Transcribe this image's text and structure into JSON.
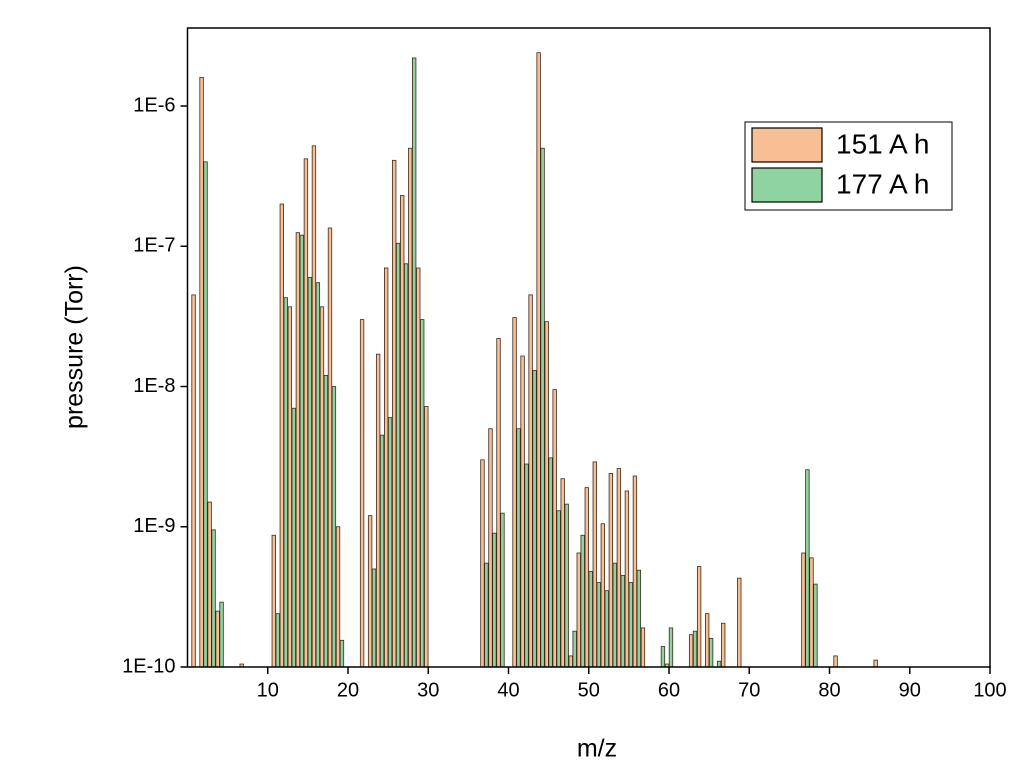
{
  "chart_data": {
    "type": "bar",
    "x_label": "m/z",
    "y_label": "pressure (Torr)",
    "x": [
      1,
      2,
      3,
      4,
      7,
      11,
      12,
      13,
      14,
      15,
      16,
      17,
      18,
      19,
      22,
      23,
      24,
      25,
      26,
      27,
      28,
      29,
      30,
      37,
      38,
      39,
      41,
      42,
      43,
      44,
      45,
      46,
      47,
      48,
      49,
      50,
      51,
      52,
      53,
      54,
      55,
      56,
      57,
      59,
      60,
      63,
      64,
      65,
      66,
      67,
      69,
      77,
      78,
      81,
      86
    ],
    "series": [
      {
        "name": "151 A h",
        "color": "#f9bf94",
        "values": [
          4.5e-08,
          1.6e-06,
          1.5e-09,
          2.5e-10,
          1.05e-10,
          8.7e-10,
          2e-07,
          3.7e-08,
          1.25e-07,
          4.2e-07,
          5.2e-07,
          3.7e-08,
          1.35e-07,
          1e-09,
          3e-08,
          1.2e-09,
          1.7e-08,
          7e-08,
          4.1e-07,
          2.3e-07,
          5e-07,
          7e-08,
          7.2e-09,
          3e-09,
          5e-09,
          2.2e-08,
          3.1e-08,
          1.65e-08,
          4.5e-08,
          2.4e-06,
          2.9e-08,
          9.5e-09,
          2.2e-09,
          1.2e-10,
          6.5e-10,
          1.9e-09,
          2.9e-09,
          1.05e-09,
          2.4e-09,
          2.6e-09,
          1.8e-09,
          2.3e-09,
          1.9e-10,
          null,
          1.05e-10,
          1.7e-10,
          5.2e-10,
          2.4e-10,
          null,
          2.05e-10,
          4.3e-10,
          6.5e-10,
          6e-10,
          1.2e-10,
          1.12e-10
        ]
      },
      {
        "name": "177 A h",
        "color": "#8fd3a0",
        "values": [
          null,
          4e-07,
          9.5e-10,
          2.9e-10,
          null,
          2.4e-10,
          4.3e-08,
          7e-09,
          1.2e-07,
          6e-08,
          5.5e-08,
          1.2e-08,
          1e-08,
          1.55e-10,
          null,
          5e-10,
          4.5e-09,
          6e-09,
          1.05e-07,
          7.5e-08,
          2.2e-06,
          3e-08,
          null,
          5.5e-10,
          9e-10,
          1.25e-09,
          5e-09,
          2.8e-09,
          1.3e-08,
          5e-07,
          3.1e-09,
          1.3e-09,
          1.45e-09,
          1.8e-10,
          8.7e-10,
          4.8e-10,
          4e-10,
          3.5e-10,
          5.5e-10,
          4.5e-10,
          4e-10,
          4.9e-10,
          null,
          1.4e-10,
          1.9e-10,
          1.8e-10,
          null,
          1.6e-10,
          1.1e-10,
          null,
          null,
          2.55e-09,
          3.9e-10,
          null,
          null
        ]
      }
    ],
    "xlim": [
      0,
      100
    ],
    "xticks": [
      10,
      20,
      30,
      40,
      50,
      60,
      70,
      80,
      90,
      100
    ],
    "ylim": [
      1e-10,
      3.6e-06
    ],
    "y_scale": "log",
    "yticks": [
      {
        "value": 1e-10,
        "label": "1E-10"
      },
      {
        "value": 1e-09,
        "label": "1E-9"
      },
      {
        "value": 1e-08,
        "label": "1E-8"
      },
      {
        "value": 1e-07,
        "label": "1E-7"
      },
      {
        "value": 1e-06,
        "label": "1E-6"
      }
    ],
    "legend": "upper right"
  }
}
